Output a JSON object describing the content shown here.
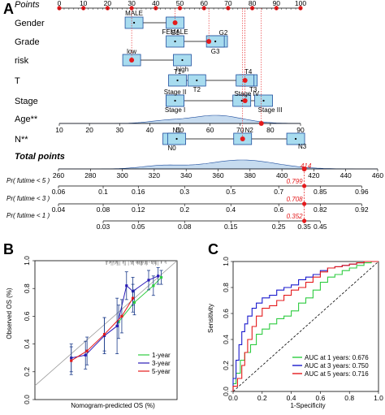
{
  "colors": {
    "box_fill": "#a8dcef",
    "box_stroke": "#1f4e9e",
    "red": "#e41a1c",
    "blue_line": "#1f4e9e",
    "density_fill": "#c6dbef",
    "roc_1year": "#2ecc40",
    "roc_3year": "#1a1acd",
    "roc_5year": "#e41a1c",
    "cal_1year": "#2ecc40",
    "cal_3year": "#2a1ab8",
    "cal_5year": "#e41a1c",
    "cal_err": "#1a3a8a"
  },
  "chart_data": [
    {
      "panel": "A",
      "type": "nomogram",
      "panel_label": "A",
      "points_scale": {
        "label": "Points",
        "range": [
          0,
          100
        ],
        "ticks": [
          0,
          10,
          20,
          30,
          40,
          50,
          60,
          70,
          80,
          90,
          100
        ]
      },
      "variables": [
        {
          "name": "Gender",
          "levels": [
            {
              "label": "MALE",
              "points": 31
            },
            {
              "label": "FEMALE",
              "points": 48
            }
          ],
          "selected_points": 48
        },
        {
          "name": "Grade",
          "levels": [
            {
              "label": "G1",
              "points": 48
            },
            {
              "label": "G2",
              "points": 66
            },
            {
              "label": "G3",
              "points": 62
            }
          ],
          "selected_points": 62
        },
        {
          "name": "risk",
          "levels": [
            {
              "label": "low",
              "points": 30
            },
            {
              "label": "high",
              "points": 51
            }
          ],
          "selected_points": 30
        },
        {
          "name": "T",
          "levels": [
            {
              "label": "T1",
              "points": 49
            },
            {
              "label": "T2",
              "points": 57
            },
            {
              "label": "T3",
              "points": 77
            },
            {
              "label": "T4",
              "points": 77
            }
          ],
          "selected_points": 77
        },
        {
          "name": "Stage",
          "levels": [
            {
              "label": "Stage I",
              "points": 48
            },
            {
              "label": "Stage II",
              "points": 48
            },
            {
              "label": "Stage III",
              "points": 82
            },
            {
              "label": "Stage IV",
              "points": 77
            }
          ],
          "selected_points": 77
        },
        {
          "name": "Age**",
          "axis_range": [
            10,
            90
          ],
          "ticks": [
            10,
            20,
            30,
            40,
            50,
            60,
            70,
            80,
            90
          ],
          "selected_value": 77
        },
        {
          "name": "N**",
          "levels": [
            {
              "label": "N0",
              "points": 48
            },
            {
              "label": "N1",
              "points": 48
            },
            {
              "label": "N2",
              "points": 76
            },
            {
              "label": "N3",
              "points": 98
            }
          ],
          "selected_points": 76
        }
      ],
      "total_points": {
        "label": "Total points",
        "range": [
          260,
          460
        ],
        "ticks": [
          260,
          280,
          300,
          320,
          340,
          360,
          380,
          400,
          420,
          440,
          460
        ],
        "value": 414,
        "value_label": "414"
      },
      "probabilities": [
        {
          "label": "Pr( futime < 5 )",
          "ticks": [
            "0.06",
            "0.1",
            "0.16",
            "0.3",
            "0.5",
            "0.7",
            "0.85",
            "0.96"
          ],
          "tick_totals": [
            260,
            288,
            310,
            339,
            368,
            398,
            424,
            450
          ],
          "value_label": "0.799"
        },
        {
          "label": "Pr( futime < 3 )",
          "ticks": [
            "0.04",
            "0.08",
            "0.12",
            "0.2",
            "0.4",
            "0.6",
            "0.82",
            "0.92"
          ],
          "tick_totals": [
            260,
            288,
            310,
            339,
            368,
            398,
            424,
            450
          ],
          "value_label": "0.708"
        },
        {
          "label": "Pr( futime < 1 )",
          "ticks": [
            "0.03",
            "0.05",
            "0.08",
            "0.15",
            "0.25",
            "0.35",
            "0.45"
          ],
          "tick_totals": [
            288,
            310,
            339,
            368,
            398,
            414,
            424
          ],
          "value_label": "0.352"
        }
      ]
    },
    {
      "panel": "B",
      "type": "line",
      "panel_label": "B",
      "xlabel": "Nomogram-predicted OS (%)",
      "ylabel": "Observed OS (%)",
      "xlim": [
        0.1,
        1.0
      ],
      "ylim": [
        0.0,
        1.0
      ],
      "yticks": [
        "0.0",
        "0.2",
        "0.4",
        "0.6",
        "0.8",
        "1.0"
      ],
      "legend_position": "bottom-right",
      "series": [
        {
          "name": "1-year",
          "x": [
            0.63,
            0.73,
            0.85,
            0.9
          ],
          "y": [
            0.56,
            0.7,
            0.82,
            0.88
          ],
          "err": [
            0.12,
            0.09,
            0.07,
            0.05
          ]
        },
        {
          "name": "3-year",
          "x": [
            0.33,
            0.42,
            0.54,
            0.62,
            0.68,
            0.72,
            0.82,
            0.88
          ],
          "y": [
            0.3,
            0.32,
            0.46,
            0.53,
            0.82,
            0.78,
            0.86,
            0.89
          ],
          "err": [
            0.1,
            0.1,
            0.13,
            0.2,
            0.1,
            0.1,
            0.07,
            0.06
          ]
        },
        {
          "name": "5-year",
          "x": [
            0.33,
            0.43,
            0.54,
            0.65,
            0.72
          ],
          "y": [
            0.28,
            0.35,
            0.47,
            0.6,
            0.73
          ],
          "err": [
            0.1,
            0.1,
            0.12,
            0.12,
            0.1
          ]
        }
      ]
    },
    {
      "panel": "C",
      "type": "line",
      "panel_label": "C",
      "xlabel": "1-Specificity",
      "ylabel": "Sensitivity",
      "xlim": [
        0.0,
        1.0
      ],
      "ylim": [
        0.0,
        1.0
      ],
      "ticks": [
        "0.0",
        "0.2",
        "0.4",
        "0.6",
        "0.8",
        "1.0"
      ],
      "legend_position": "bottom-right",
      "series": [
        {
          "name": "AUC at 1 years: 0.676",
          "x": [
            0,
            0.02,
            0.05,
            0.08,
            0.12,
            0.16,
            0.2,
            0.25,
            0.3,
            0.35,
            0.4,
            0.45,
            0.5,
            0.55,
            0.6,
            0.65,
            0.7,
            0.75,
            0.8,
            0.85,
            0.9,
            0.95,
            1
          ],
          "y": [
            0,
            0.06,
            0.14,
            0.24,
            0.3,
            0.36,
            0.44,
            0.48,
            0.52,
            0.56,
            0.58,
            0.62,
            0.68,
            0.72,
            0.78,
            0.84,
            0.88,
            0.9,
            0.93,
            0.95,
            0.97,
            0.99,
            1
          ]
        },
        {
          "name": "AUC at 3 years: 0.750",
          "x": [
            0,
            0.02,
            0.04,
            0.06,
            0.08,
            0.1,
            0.13,
            0.16,
            0.2,
            0.25,
            0.3,
            0.35,
            0.4,
            0.45,
            0.5,
            0.55,
            0.6,
            0.65,
            0.7,
            0.75,
            0.8,
            0.85,
            0.9,
            0.95,
            1
          ],
          "y": [
            0,
            0.1,
            0.24,
            0.36,
            0.46,
            0.52,
            0.58,
            0.64,
            0.68,
            0.72,
            0.74,
            0.78,
            0.8,
            0.82,
            0.86,
            0.88,
            0.9,
            0.93,
            0.95,
            0.96,
            0.97,
            0.98,
            0.99,
            1,
            1
          ]
        },
        {
          "name": "AUC at 5 years: 0.716",
          "x": [
            0,
            0.03,
            0.06,
            0.08,
            0.1,
            0.13,
            0.16,
            0.2,
            0.25,
            0.3,
            0.35,
            0.4,
            0.45,
            0.5,
            0.55,
            0.6,
            0.65,
            0.7,
            0.75,
            0.8,
            0.85,
            0.9,
            0.95,
            1
          ],
          "y": [
            0,
            0.04,
            0.1,
            0.2,
            0.3,
            0.4,
            0.5,
            0.58,
            0.64,
            0.66,
            0.7,
            0.74,
            0.78,
            0.8,
            0.84,
            0.88,
            0.92,
            0.95,
            0.96,
            0.97,
            0.98,
            0.99,
            1,
            1
          ]
        }
      ]
    }
  ]
}
